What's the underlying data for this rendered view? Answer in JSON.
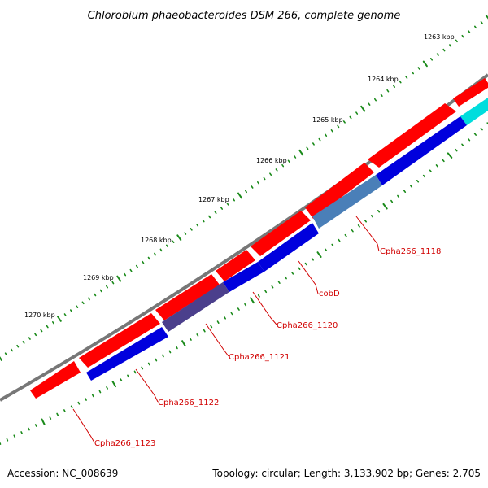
{
  "title": "Chlorobium phaeobacteroides DSM 266, complete genome",
  "footer": {
    "accession": "Accession: NC_008639",
    "summary": "Topology: circular; Length: 3,133,902 bp; Genes: 2,705"
  },
  "ruler": {
    "labels": [
      "1263 kbp",
      "1264 kbp",
      "1265 kbp",
      "1266 kbp",
      "1267 kbp",
      "1268 kbp",
      "1269 kbp",
      "1270 kbp"
    ]
  },
  "gene_labels": [
    "Cpha266_1118",
    "cobD",
    "Cpha266_1120",
    "Cpha266_1121",
    "Cpha266_1122",
    "Cpha266_1123"
  ],
  "colors": {
    "backbone": "#777777",
    "forward_genes": "#ff0000",
    "reverse_genes": "#0000dd",
    "cpha266_1118": "#4a7fb8",
    "cpha266_1121": "#4b3f8c",
    "cyan_feature": "#00dddd",
    "ticks": "#1a8a1a",
    "label_text": "#d10000"
  }
}
